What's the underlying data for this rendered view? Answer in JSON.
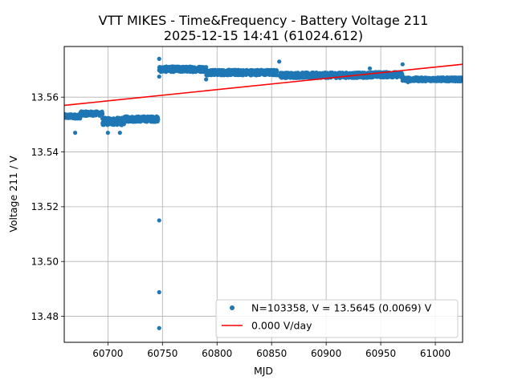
{
  "chart_data": {
    "type": "scatter",
    "title_line1": "VTT MIKES - Time&Frequency - Battery Voltage 211",
    "title_line2": "2025-12-15 14:41 (61024.612)",
    "xlabel": "MJD",
    "ylabel": "Voltage 211 / V",
    "xlim": [
      60660,
      61025
    ],
    "ylim": [
      13.4705,
      13.5785
    ],
    "xticks": [
      60700,
      60750,
      60800,
      60850,
      60900,
      60950,
      61000
    ],
    "yticks": [
      13.48,
      13.5,
      13.52,
      13.54,
      13.56
    ],
    "ytick_labels": [
      "13.48",
      "13.50",
      "13.52",
      "13.54",
      "13.56"
    ],
    "grid": true,
    "legend_position": "lower-right",
    "colors": {
      "points": "#1f77b4",
      "fit": "#ff0000"
    },
    "series": [
      {
        "name": "N=103358, V = 13.5645 (0.0069) V",
        "kind": "points",
        "segments": [
          {
            "x_range": [
              60660,
              60675
            ],
            "y_range": [
              13.5522,
              13.5538
            ]
          },
          {
            "x_range": [
              60675,
              60695
            ],
            "y_range": [
              13.5532,
              13.5548
            ]
          },
          {
            "x_range": [
              60695,
              60715
            ],
            "y_range": [
              13.5498,
              13.5525
            ]
          },
          {
            "x_range": [
              60715,
              60746
            ],
            "y_range": [
              13.551,
              13.553
            ]
          },
          {
            "x_range": [
              60747,
              60790
            ],
            "y_range": [
              13.5692,
              13.5712
            ]
          },
          {
            "x_range": [
              60790,
              60855
            ],
            "y_range": [
              13.568,
              13.57
            ]
          },
          {
            "x_range": [
              60858,
              60940
            ],
            "y_range": [
              13.567,
              13.569
            ]
          },
          {
            "x_range": [
              60940,
              60970
            ],
            "y_range": [
              13.5672,
              13.5692
            ]
          },
          {
            "x_range": [
              60970,
              61025
            ],
            "y_range": [
              13.5658,
              13.5672
            ]
          }
        ],
        "outliers": [
          {
            "x": 60747,
            "y": 13.515
          },
          {
            "x": 60747,
            "y": 13.4888
          },
          {
            "x": 60747,
            "y": 13.4757
          },
          {
            "x": 60747,
            "y": 13.574
          },
          {
            "x": 60747,
            "y": 13.5675
          },
          {
            "x": 60790,
            "y": 13.5665
          },
          {
            "x": 60857,
            "y": 13.573
          },
          {
            "x": 60940,
            "y": 13.5705
          },
          {
            "x": 60970,
            "y": 13.572
          },
          {
            "x": 60975,
            "y": 13.5655
          },
          {
            "x": 60670,
            "y": 13.547
          },
          {
            "x": 60700,
            "y": 13.547
          },
          {
            "x": 60711,
            "y": 13.547
          }
        ]
      },
      {
        "name": "0.000 V/day",
        "kind": "line",
        "x": [
          60660,
          61025
        ],
        "y": [
          13.557,
          13.572
        ]
      }
    ]
  }
}
